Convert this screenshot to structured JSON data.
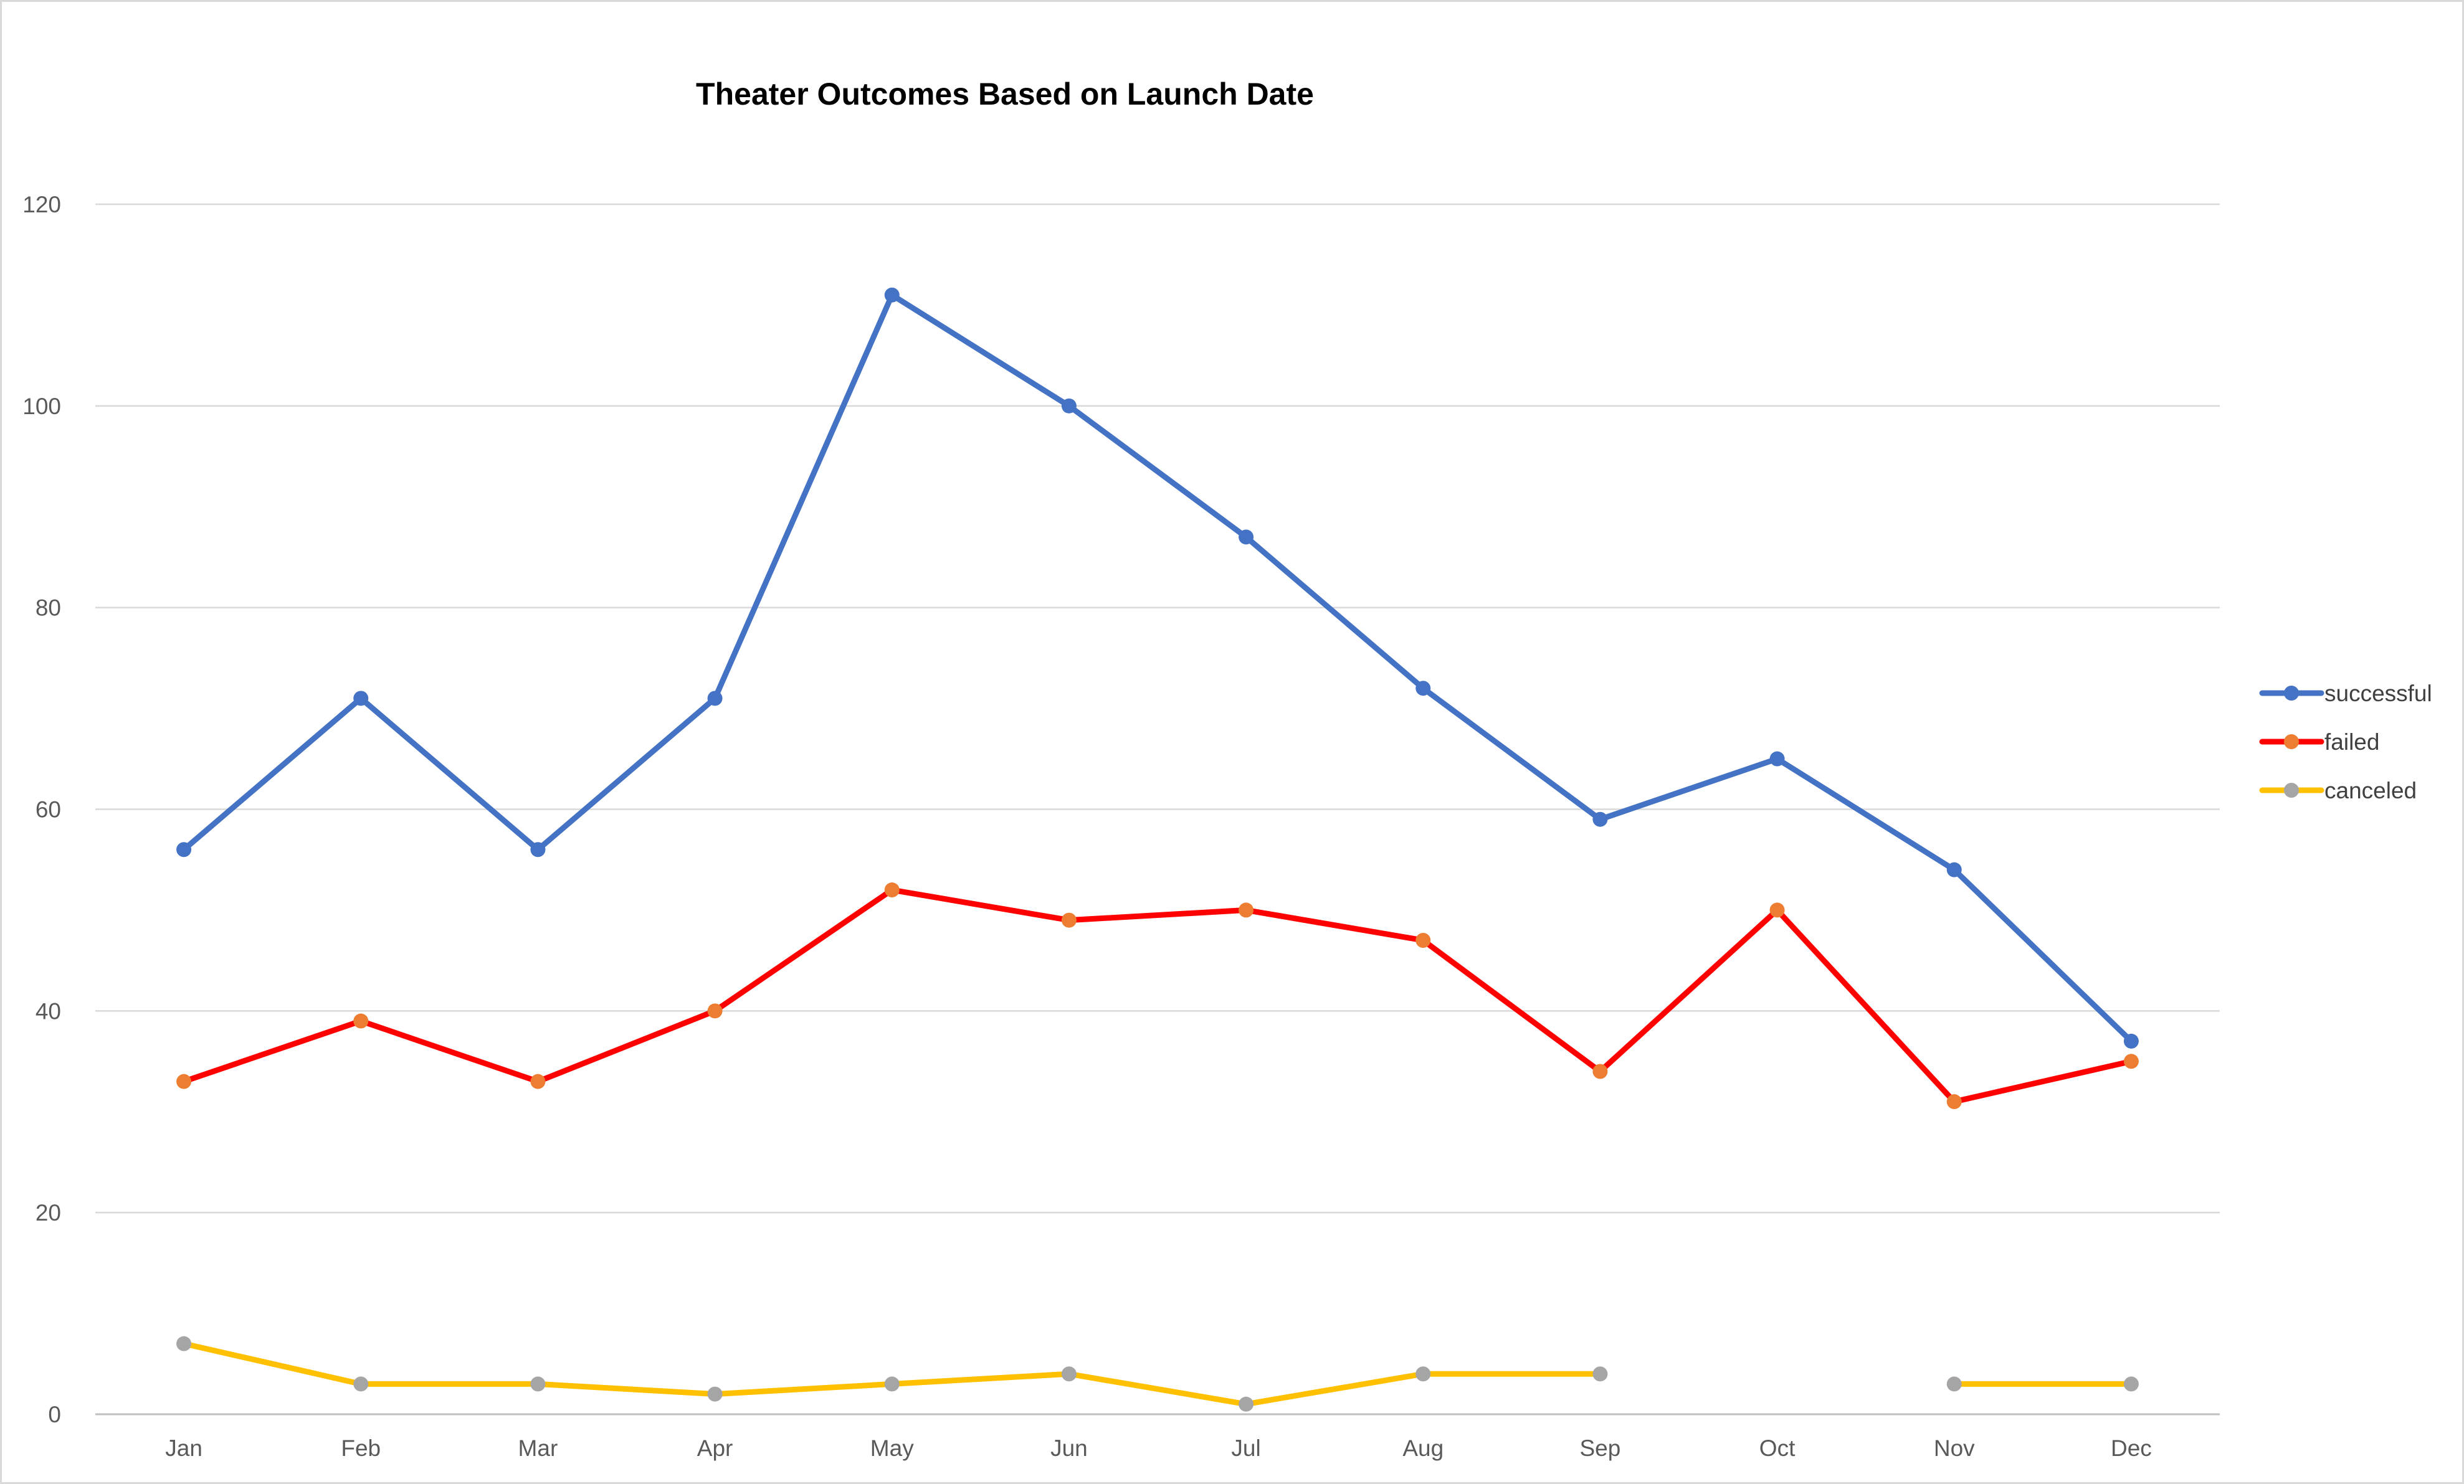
{
  "chart_data": {
    "type": "line",
    "title": "Theater Outcomes Based on Launch Date",
    "xlabel": "",
    "ylabel": "",
    "categories": [
      "Jan",
      "Feb",
      "Mar",
      "Apr",
      "May",
      "Jun",
      "Jul",
      "Aug",
      "Sep",
      "Oct",
      "Nov",
      "Dec"
    ],
    "series": [
      {
        "name": "successful",
        "line_color": "#4472C4",
        "marker_color": "#4472C4",
        "values": [
          56,
          71,
          56,
          71,
          111,
          100,
          87,
          72,
          59,
          65,
          54,
          37
        ]
      },
      {
        "name": "failed",
        "line_color": "#FF0000",
        "marker_color": "#ED7D31",
        "values": [
          33,
          39,
          33,
          40,
          52,
          49,
          50,
          47,
          34,
          50,
          31,
          35
        ]
      },
      {
        "name": "canceled",
        "line_color": "#FFC000",
        "marker_color": "#A5A5A5",
        "values": [
          7,
          3,
          3,
          2,
          3,
          4,
          1,
          4,
          4,
          null,
          3,
          3
        ]
      }
    ],
    "ylim": [
      0,
      120
    ],
    "yticks": [
      0,
      20,
      40,
      60,
      80,
      100,
      120
    ],
    "grid": true,
    "legend": "right",
    "gridline_color": "#D9D9D9",
    "axis_color": "#BFBFBF"
  }
}
